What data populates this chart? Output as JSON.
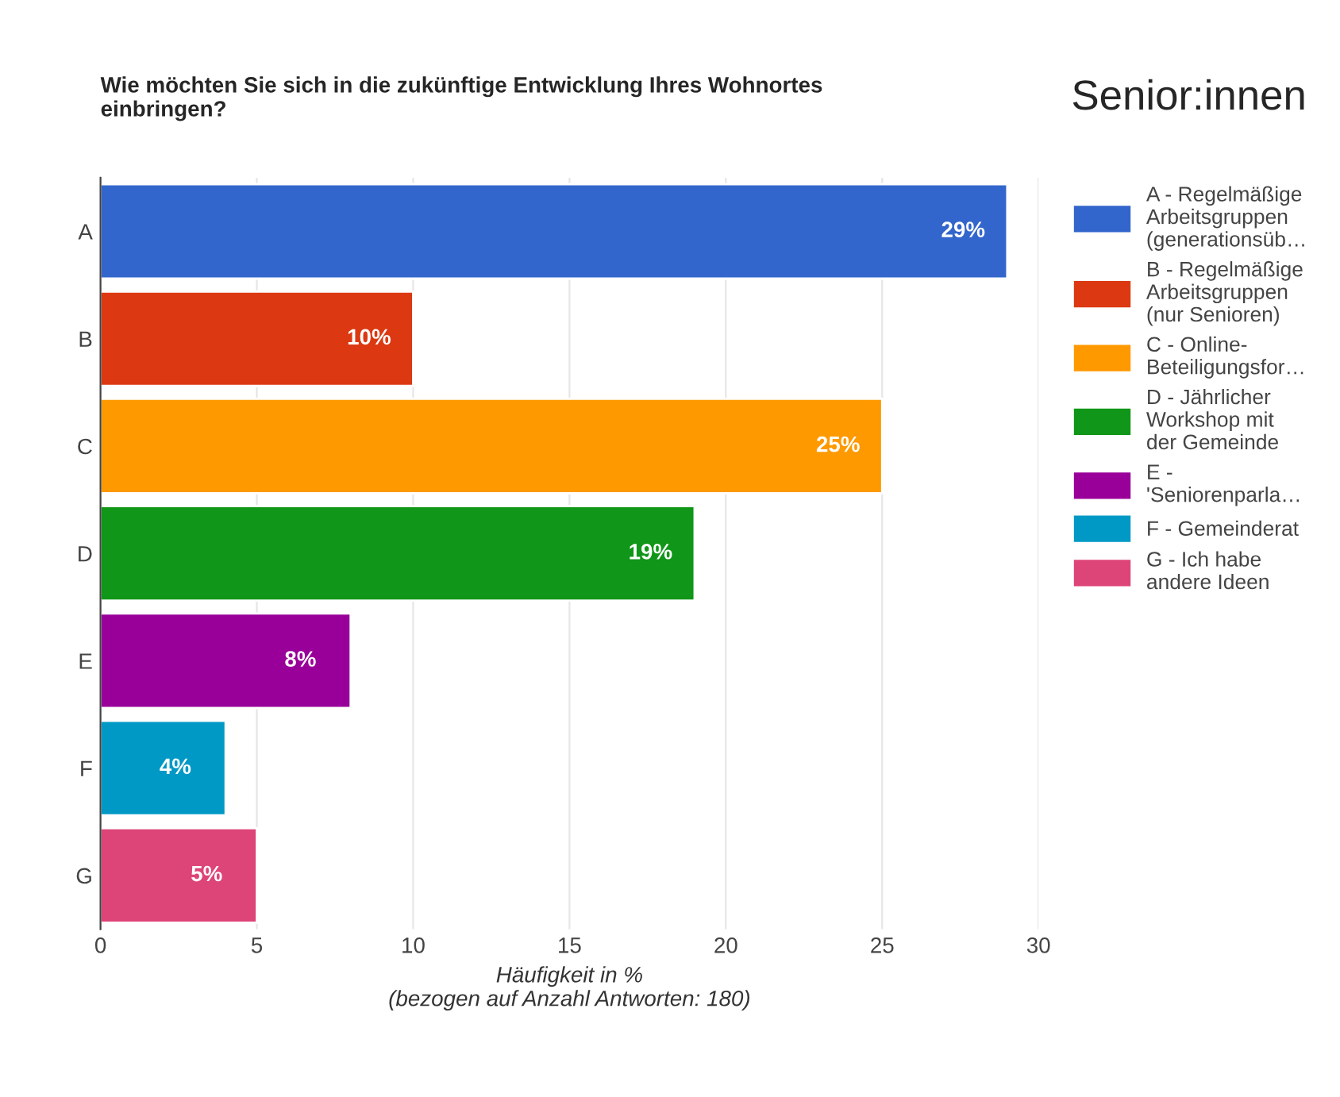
{
  "chart_data": {
    "type": "bar",
    "orientation": "horizontal",
    "title": "Wie möchten Sie sich in die zukünftige Entwicklung Ihres Wohnortes\neinbringen?",
    "subtitle": "Senior:innen",
    "xlabel": "Häufigkeit in %\n(bezogen auf Anzahl Antworten: 180)",
    "categories": [
      "A",
      "B",
      "C",
      "D",
      "E",
      "F",
      "G"
    ],
    "series": [
      {
        "name": "A - Regelmäßige\nArbeitsgruppen\n(generationsüb…",
        "color": "#3366cc",
        "values": [
          29,
          null,
          null,
          null,
          null,
          null,
          null
        ],
        "value_labels": [
          "29%",
          null,
          null,
          null,
          null,
          null,
          null
        ]
      },
      {
        "name": "B - Regelmäßige\nArbeitsgruppen\n(nur Senioren)",
        "color": "#dc3912",
        "values": [
          null,
          10,
          null,
          null,
          null,
          null,
          null
        ],
        "value_labels": [
          null,
          "10%",
          null,
          null,
          null,
          null,
          null
        ]
      },
      {
        "name": "C - Online-\nBeteiligungsfor…",
        "color": "#ff9900",
        "values": [
          null,
          null,
          25,
          null,
          null,
          null,
          null
        ],
        "value_labels": [
          null,
          null,
          "25%",
          null,
          null,
          null,
          null
        ]
      },
      {
        "name": "D - Jährlicher\nWorkshop mit\nder Gemeinde",
        "color": "#109618",
        "values": [
          null,
          null,
          null,
          19,
          null,
          null,
          null
        ],
        "value_labels": [
          null,
          null,
          null,
          "19%",
          null,
          null,
          null
        ]
      },
      {
        "name": "E -\n'Seniorenparla…",
        "color": "#990099",
        "values": [
          null,
          null,
          null,
          null,
          8,
          null,
          null
        ],
        "value_labels": [
          null,
          null,
          null,
          null,
          "8%",
          null,
          null
        ]
      },
      {
        "name": "F - Gemeinderat",
        "color": "#0099c6",
        "values": [
          null,
          null,
          null,
          null,
          null,
          4,
          null
        ],
        "value_labels": [
          null,
          null,
          null,
          null,
          null,
          "4%",
          null
        ]
      },
      {
        "name": "G - Ich habe\nandere Ideen",
        "color": "#dd4477",
        "values": [
          null,
          null,
          null,
          null,
          null,
          null,
          5
        ],
        "value_labels": [
          null,
          null,
          null,
          null,
          null,
          null,
          "5%"
        ]
      }
    ],
    "xlim": [
      0,
      30
    ],
    "xticks": [
      0,
      5,
      10,
      15,
      20,
      25,
      30
    ],
    "grid": "x",
    "legend": "right"
  }
}
